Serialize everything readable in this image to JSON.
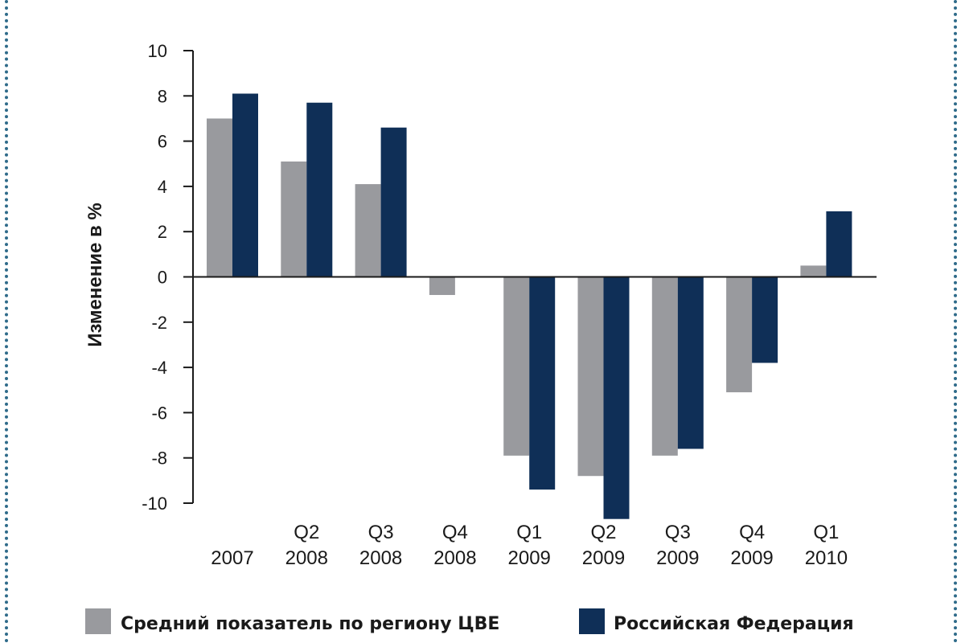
{
  "chart_data": {
    "type": "bar",
    "ylabel": "Изменение в %",
    "ylim": [
      -10,
      10
    ],
    "yticks": [
      10,
      8,
      6,
      4,
      2,
      0,
      -2,
      -4,
      -6,
      -8,
      -10
    ],
    "categories": [
      [
        "",
        "2007"
      ],
      [
        "Q2",
        "2008"
      ],
      [
        "Q3",
        "2008"
      ],
      [
        "Q4",
        "2008"
      ],
      [
        "Q1",
        "2009"
      ],
      [
        "Q2",
        "2009"
      ],
      [
        "Q3",
        "2009"
      ],
      [
        "Q4",
        "2009"
      ],
      [
        "Q1",
        "2010"
      ]
    ],
    "series": [
      {
        "name": "Средний показатель по региону ЦВЕ",
        "color": "#999a9e",
        "values": [
          7.0,
          5.1,
          4.1,
          -0.8,
          -7.9,
          -8.8,
          -7.9,
          -5.1,
          0.5
        ]
      },
      {
        "name": "Российская Федерация",
        "color": "#0f2f57",
        "values": [
          8.1,
          7.7,
          6.6,
          0.0,
          -9.4,
          -10.7,
          -7.6,
          -3.8,
          2.9
        ]
      }
    ],
    "grid": false,
    "legend": "bottom"
  }
}
